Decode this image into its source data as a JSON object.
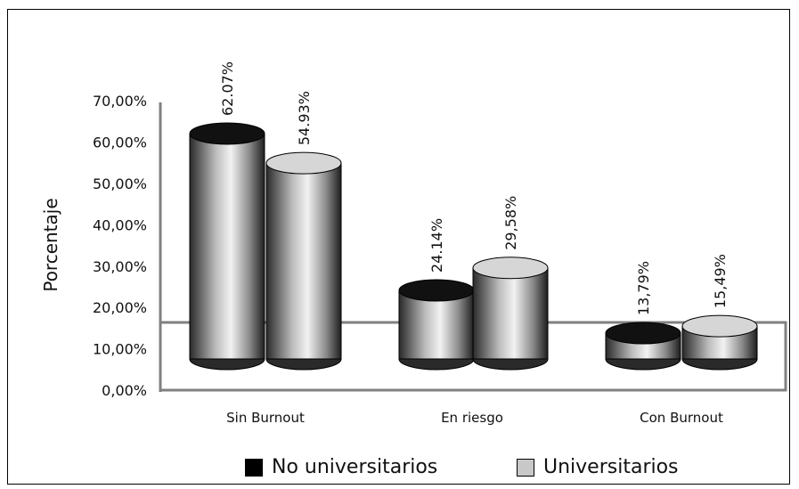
{
  "chart_data": {
    "type": "bar",
    "title": "",
    "xlabel": "",
    "ylabel": "Porcentaje",
    "ylim": [
      0,
      0.7
    ],
    "yticks": [
      "0,00%",
      "10,00%",
      "20,00%",
      "30,00%",
      "40,00%",
      "50,00%",
      "60,00%",
      "70,00%"
    ],
    "categories": [
      "Sin Burnout",
      "En riesgo",
      "Con Burnout"
    ],
    "series": [
      {
        "name": "No universitarios",
        "values": [
          0.6207,
          0.2414,
          0.1379
        ],
        "labels": [
          "62.07%",
          "24.14%",
          "13,79%"
        ],
        "color": "#1a1a1a"
      },
      {
        "name": "Universitarios",
        "values": [
          0.5493,
          0.2958,
          0.1549
        ],
        "labels": [
          "54.93%",
          "29,58%",
          "15,49%"
        ],
        "color": "#c8c8c8"
      }
    ],
    "style": "3d-cylinder",
    "legend_position": "bottom"
  }
}
